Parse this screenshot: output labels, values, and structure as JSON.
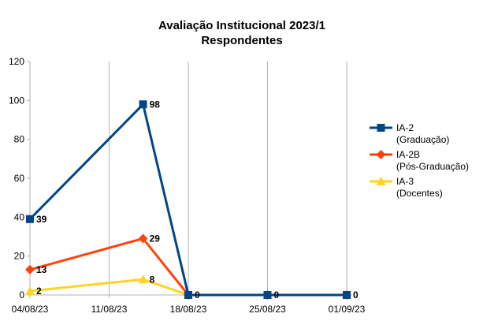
{
  "chart_data": {
    "type": "line",
    "title": "Avaliação Institucional 2023/1",
    "subtitle": "Respondentes",
    "xlabel": "",
    "ylabel": "",
    "x_ticks": [
      "04/08/23",
      "11/08/23",
      "18/08/23",
      "25/08/23",
      "01/09/23"
    ],
    "ylim": [
      0,
      120
    ],
    "y_ticks": [
      0,
      20,
      40,
      60,
      80,
      100,
      120
    ],
    "grid": "vertical-only",
    "legend_position": "right",
    "series": [
      {
        "name": "IA-2",
        "name_line2": "(Graduação)",
        "color": "#004586",
        "marker": "square",
        "x": [
          "04/08/23",
          "2023-08-14",
          "18/08/23",
          "25/08/23",
          "01/09/23"
        ],
        "values": [
          39,
          98,
          0,
          0,
          0
        ],
        "labels": [
          "39",
          "98",
          "0",
          "0",
          "0"
        ]
      },
      {
        "name": "IA-2B",
        "name_line2": "(Pós-Graduação)",
        "color": "#ff420e",
        "marker": "diamond",
        "x": [
          "04/08/23",
          "2023-08-14",
          "18/08/23",
          "25/08/23",
          "01/09/23"
        ],
        "values": [
          13,
          29,
          0,
          0,
          0
        ],
        "labels": [
          "13",
          "29",
          "",
          "",
          ""
        ]
      },
      {
        "name": "IA-3",
        "name_line2": "(Docentes)",
        "color": "#ffd320",
        "marker": "triangle",
        "x": [
          "04/08/23",
          "2023-08-14",
          "18/08/23",
          "25/08/23",
          "01/09/23"
        ],
        "values": [
          2,
          8,
          0,
          0,
          0
        ],
        "labels": [
          "2",
          "8",
          "",
          "",
          ""
        ]
      }
    ]
  }
}
